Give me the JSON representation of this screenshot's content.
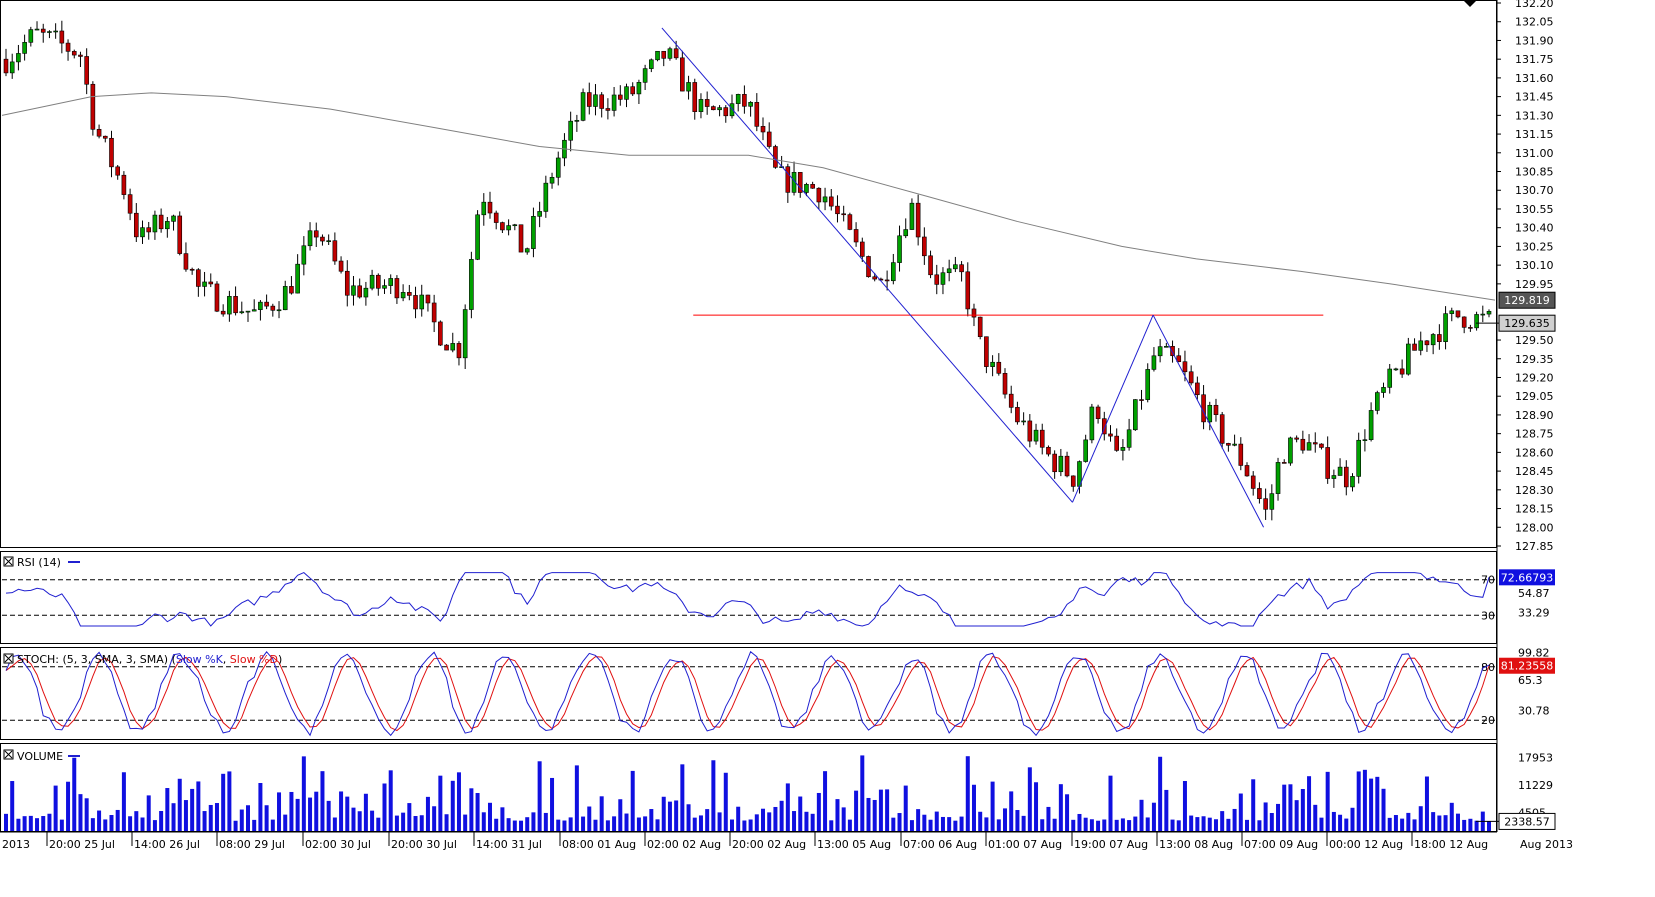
{
  "chart_data": [
    {
      "type": "candlestick",
      "panel": "price",
      "ylim": [
        127.85,
        132.2
      ],
      "y_ticks": [
        "132.20",
        "132.05",
        "131.90",
        "131.75",
        "131.60",
        "131.45",
        "131.30",
        "131.15",
        "131.00",
        "130.85",
        "130.70",
        "130.55",
        "130.40",
        "130.25",
        "130.10",
        "129.95",
        "129.50",
        "129.35",
        "129.20",
        "129.05",
        "128.90",
        "128.75",
        "128.60",
        "128.45",
        "128.30",
        "128.15",
        "128.00",
        "127.85"
      ],
      "moving_average_label": "129.819",
      "last_price_label": "129.635",
      "support_level": 129.7,
      "pattern_points": [
        {
          "x": 0.442,
          "y": 132.0
        },
        {
          "x": 0.717,
          "y": 128.2
        },
        {
          "x": 0.771,
          "y": 129.7
        },
        {
          "x": 0.845,
          "y": 128.0
        }
      ],
      "colors": {
        "up": "#00a000",
        "down": "#c00000",
        "ma": "#808080",
        "pattern": "#2020d0",
        "support": "#ff0000"
      }
    },
    {
      "type": "line",
      "panel": "rsi",
      "title": "RSI (14)",
      "ylim": [
        0,
        100
      ],
      "levels": [
        "70",
        "30"
      ],
      "y_ticks": [
        "54.87",
        "33.29"
      ],
      "last_value_label": "72.66793",
      "series": [
        {
          "name": "RSI (14)",
          "color": "#2020d0"
        }
      ]
    },
    {
      "type": "line",
      "panel": "stoch",
      "title": "STOCH: (5, 3, SMA, 3, SMA)",
      "ylim": [
        0,
        100
      ],
      "levels": [
        "80",
        "20"
      ],
      "y_ticks": [
        "99.82",
        "65.3",
        "30.78"
      ],
      "last_value_label": "81.23558",
      "series": [
        {
          "name": "Slow %K",
          "color": "#2020d0"
        },
        {
          "name": "Slow %D",
          "color": "#e01010"
        }
      ]
    },
    {
      "type": "bar",
      "panel": "volume",
      "title": "VOLUME",
      "y_ticks": [
        "17953",
        "11229",
        "4505"
      ],
      "last_value_label": "2338.57",
      "series": [
        {
          "name": "VOLUME",
          "color": "#1010e0"
        }
      ]
    }
  ],
  "x_labels": [
    "2013",
    "20:00 25 Jul",
    "14:00 26 Jul",
    "08:00 29 Jul",
    "02:00 30 Jul",
    "20:00 30 Jul",
    "14:00 31 Jul",
    "08:00 01 Aug",
    "02:00 02 Aug",
    "20:00 02 Aug",
    "13:00 05 Aug",
    "07:00 06 Aug",
    "01:00 07 Aug",
    "19:00 07 Aug",
    "13:00 08 Aug",
    "07:00 09 Aug",
    "00:00 12 Aug",
    "18:00 12 Aug",
    "Aug 2013"
  ]
}
